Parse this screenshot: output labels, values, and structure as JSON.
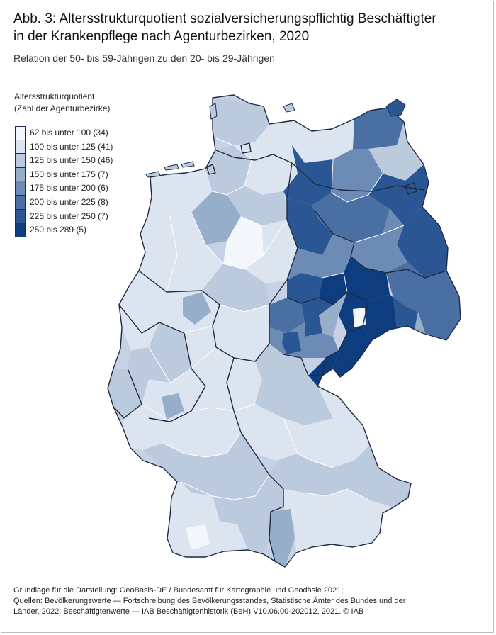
{
  "figure": {
    "title_line1": "Abb. 3: Altersstrukturquotient sozialversicherungspflichtig Beschäftigter",
    "title_line2": "in der Krankenpflege nach Agenturbezirken, 2020",
    "subtitle": "Relation der 50- bis 59-Jährigen zu den 20- bis 29-Jährigen"
  },
  "legend": {
    "title_line1": "Altersstrukturquotient",
    "title_line2": "(Zahl der Agenturbezirke)",
    "classes": [
      {
        "label": " 62 bis unter 100 (34)",
        "color": "#f3f7fb"
      },
      {
        "label": "100 bis unter 125 (41)",
        "color": "#dce4ef"
      },
      {
        "label": "125 bis unter 150 (46)",
        "color": "#bccade"
      },
      {
        "label": "150 bis unter 175 (7)",
        "color": "#97aecb"
      },
      {
        "label": "175 bis unter 200 (6)",
        "color": "#6c8cb6"
      },
      {
        "label": "200 bis unter 225 (8)",
        "color": "#4a6fa3"
      },
      {
        "label": "225 bis unter 250 (7)",
        "color": "#2a5793"
      },
      {
        "label": "250 bis 289 (5)",
        "color": "#0d3d7f"
      }
    ]
  },
  "map": {
    "state_border_color": "#1f2a44",
    "district_border_color": "#ffffff"
  },
  "footer": {
    "line1": "Grundlage für die Darstellung: GeoBasis-DE / Bundesamt für Kartographie und Geodäsie 2021;",
    "line2": "Quellen: Bevölkerungswerte — Fortschreibung des Bevölkerungsstandes, Statistische Ämter des Bundes und der",
    "line3": "Länder, 2022; Beschäftigtenwerte — IAB Beschäftigtenhistorik (BeH) V10.06.00-202012, 2021. © IAB"
  }
}
